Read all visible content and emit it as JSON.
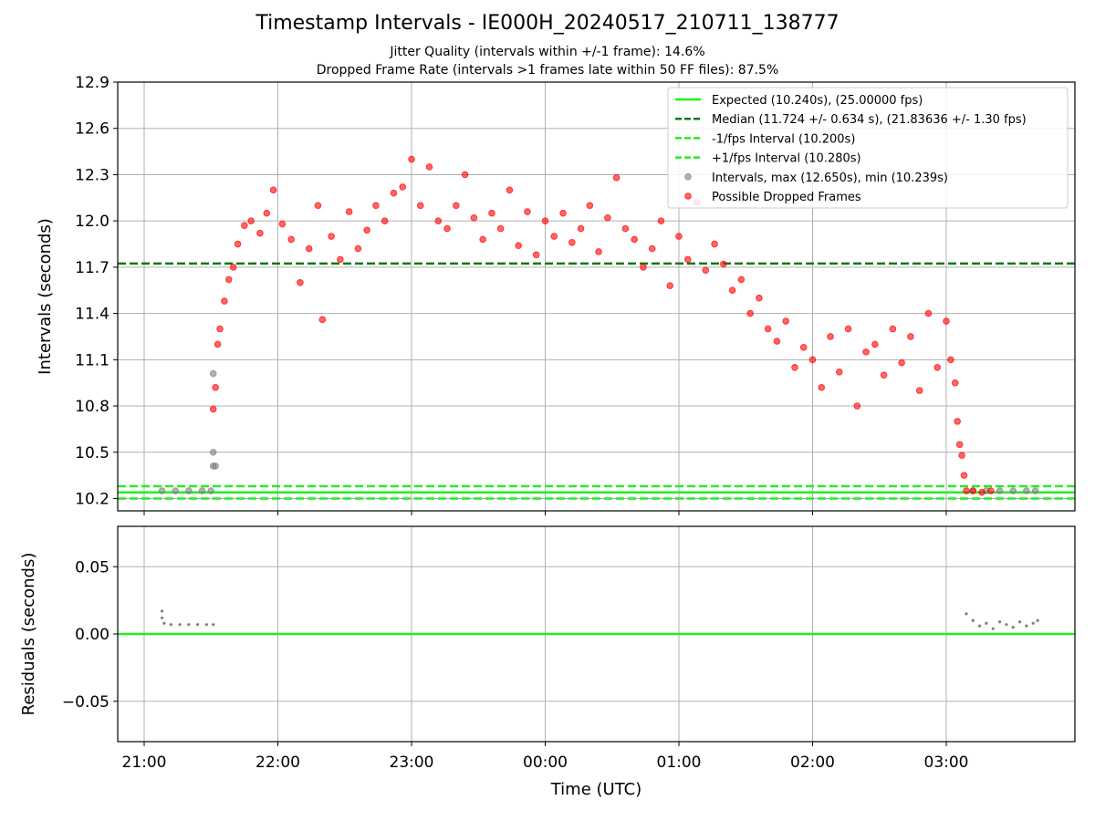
{
  "chart_data": [
    {
      "type": "scatter",
      "title": "Timestamp Intervals - IE000H_20240517_210711_138777",
      "subtitle_lines": [
        "Jitter Quality (intervals within +/-1 frame): 14.6%",
        "Dropped Frame Rate (intervals >1 frames late within 50 FF files): 87.5%"
      ],
      "ylabel": "Intervals (seconds)",
      "ylim": [
        10.12,
        12.9
      ],
      "yticks": [
        "10.2",
        "10.5",
        "10.8",
        "11.1",
        "11.4",
        "11.7",
        "12.0",
        "12.3",
        "12.6",
        "12.9"
      ],
      "grid": true,
      "legend_position": "top-right",
      "reference_lines": [
        {
          "label": "Expected (10.240s), (25.00000 fps)",
          "value": 10.24,
          "color": "#22ee22",
          "style": "solid"
        },
        {
          "label": "Median (11.724 +/- 0.634 s), (21.83636 +/- 1.30 fps)",
          "value": 11.724,
          "color": "#087a08",
          "style": "dashed"
        },
        {
          "label": "-1/fps Interval (10.200s)",
          "value": 10.2,
          "color": "#22ee22",
          "style": "dashed"
        },
        {
          "label": "+1/fps Interval (10.280s)",
          "value": 10.28,
          "color": "#22ee22",
          "style": "dashed"
        }
      ],
      "series": [
        {
          "label": "Intervals, max (12.650s), min (10.239s)",
          "color": "#808080",
          "points": [
            [
              "21:08",
              10.25
            ],
            [
              "21:14",
              10.25
            ],
            [
              "21:20",
              10.25
            ],
            [
              "21:26",
              10.25
            ],
            [
              "21:30",
              10.25
            ],
            [
              "21:31",
              10.41
            ],
            [
              "21:32",
              10.41
            ],
            [
              "21:31",
              10.5
            ],
            [
              "21:31",
              11.01
            ],
            [
              "03:12",
              10.25
            ],
            [
              "03:18",
              10.25
            ],
            [
              "03:24",
              10.25
            ],
            [
              "03:30",
              10.25
            ],
            [
              "03:36",
              10.25
            ],
            [
              "03:40",
              10.25
            ]
          ]
        },
        {
          "label": "Possible Dropped Frames",
          "color": "#ff0000",
          "points": [
            [
              "21:31",
              10.78
            ],
            [
              "21:32",
              10.92
            ],
            [
              "21:33",
              11.2
            ],
            [
              "21:34",
              11.3
            ],
            [
              "21:36",
              11.48
            ],
            [
              "21:38",
              11.62
            ],
            [
              "21:40",
              11.7
            ],
            [
              "21:42",
              11.85
            ],
            [
              "21:45",
              11.97
            ],
            [
              "21:48",
              12.0
            ],
            [
              "21:52",
              11.92
            ],
            [
              "21:55",
              12.05
            ],
            [
              "21:58",
              12.2
            ],
            [
              "22:02",
              11.98
            ],
            [
              "22:06",
              11.88
            ],
            [
              "22:10",
              11.6
            ],
            [
              "22:14",
              11.82
            ],
            [
              "22:18",
              12.1
            ],
            [
              "22:20",
              11.36
            ],
            [
              "22:24",
              11.9
            ],
            [
              "22:28",
              11.75
            ],
            [
              "22:32",
              12.06
            ],
            [
              "22:36",
              11.82
            ],
            [
              "22:40",
              11.94
            ],
            [
              "22:44",
              12.1
            ],
            [
              "22:48",
              12.0
            ],
            [
              "22:52",
              12.18
            ],
            [
              "22:56",
              12.22
            ],
            [
              "23:00",
              12.4
            ],
            [
              "23:04",
              12.1
            ],
            [
              "23:08",
              12.35
            ],
            [
              "23:12",
              12.0
            ],
            [
              "23:16",
              11.95
            ],
            [
              "23:20",
              12.1
            ],
            [
              "23:24",
              12.3
            ],
            [
              "23:28",
              12.02
            ],
            [
              "23:32",
              11.88
            ],
            [
              "23:36",
              12.05
            ],
            [
              "23:40",
              11.95
            ],
            [
              "23:44",
              12.2
            ],
            [
              "23:48",
              11.84
            ],
            [
              "23:52",
              12.06
            ],
            [
              "23:56",
              11.78
            ],
            [
              "00:00",
              12.0
            ],
            [
              "00:04",
              11.9
            ],
            [
              "00:08",
              12.05
            ],
            [
              "00:12",
              11.86
            ],
            [
              "00:16",
              11.95
            ],
            [
              "00:20",
              12.1
            ],
            [
              "00:24",
              11.8
            ],
            [
              "00:28",
              12.02
            ],
            [
              "00:32",
              12.28
            ],
            [
              "00:36",
              11.95
            ],
            [
              "00:40",
              11.88
            ],
            [
              "00:44",
              11.7
            ],
            [
              "00:48",
              11.82
            ],
            [
              "00:52",
              12.0
            ],
            [
              "00:56",
              11.58
            ],
            [
              "01:00",
              11.9
            ],
            [
              "01:04",
              11.75
            ],
            [
              "01:08",
              12.12
            ],
            [
              "01:12",
              11.68
            ],
            [
              "01:16",
              11.85
            ],
            [
              "01:20",
              11.72
            ],
            [
              "01:24",
              11.55
            ],
            [
              "01:28",
              11.62
            ],
            [
              "01:32",
              11.4
            ],
            [
              "01:36",
              11.5
            ],
            [
              "01:40",
              11.3
            ],
            [
              "01:44",
              11.22
            ],
            [
              "01:48",
              11.35
            ],
            [
              "01:52",
              11.05
            ],
            [
              "01:56",
              11.18
            ],
            [
              "02:00",
              11.1
            ],
            [
              "02:04",
              10.92
            ],
            [
              "02:08",
              11.25
            ],
            [
              "02:12",
              11.02
            ],
            [
              "02:16",
              11.3
            ],
            [
              "02:20",
              10.8
            ],
            [
              "02:24",
              11.15
            ],
            [
              "02:28",
              11.2
            ],
            [
              "02:32",
              11.0
            ],
            [
              "02:36",
              11.3
            ],
            [
              "02:40",
              11.08
            ],
            [
              "02:44",
              11.25
            ],
            [
              "02:48",
              10.9
            ],
            [
              "02:52",
              11.4
            ],
            [
              "02:56",
              11.05
            ],
            [
              "03:00",
              11.35
            ],
            [
              "03:02",
              11.1
            ],
            [
              "03:04",
              10.95
            ],
            [
              "03:05",
              10.7
            ],
            [
              "03:06",
              10.55
            ],
            [
              "03:07",
              10.48
            ],
            [
              "03:08",
              10.35
            ],
            [
              "03:09",
              10.25
            ],
            [
              "03:12",
              10.25
            ],
            [
              "03:16",
              10.24
            ],
            [
              "03:20",
              10.25
            ]
          ]
        }
      ]
    },
    {
      "type": "scatter",
      "xlabel": "Time (UTC)",
      "ylabel": "Residuals (seconds)",
      "ylim": [
        -0.08,
        0.08
      ],
      "yticks": [
        "−0.05",
        "0.00",
        "0.05"
      ],
      "xticks": [
        "21:00",
        "22:00",
        "23:00",
        "00:00",
        "01:00",
        "02:00",
        "03:00"
      ],
      "grid": true,
      "reference_lines": [
        {
          "value": 0.0,
          "color": "#22ee22",
          "style": "solid"
        }
      ],
      "series": [
        {
          "color": "#808080",
          "points": [
            [
              "21:08",
              0.017
            ],
            [
              "21:08",
              0.012
            ],
            [
              "21:09",
              0.008
            ],
            [
              "21:12",
              0.007
            ],
            [
              "21:16",
              0.007
            ],
            [
              "21:20",
              0.007
            ],
            [
              "21:24",
              0.007
            ],
            [
              "21:28",
              0.007
            ],
            [
              "21:31",
              0.007
            ],
            [
              "03:09",
              0.015
            ],
            [
              "03:12",
              0.01
            ],
            [
              "03:15",
              0.006
            ],
            [
              "03:18",
              0.008
            ],
            [
              "03:21",
              0.004
            ],
            [
              "03:24",
              0.009
            ],
            [
              "03:27",
              0.007
            ],
            [
              "03:30",
              0.005
            ],
            [
              "03:33",
              0.009
            ],
            [
              "03:36",
              0.006
            ],
            [
              "03:39",
              0.008
            ],
            [
              "03:41",
              0.01
            ]
          ]
        }
      ]
    }
  ]
}
